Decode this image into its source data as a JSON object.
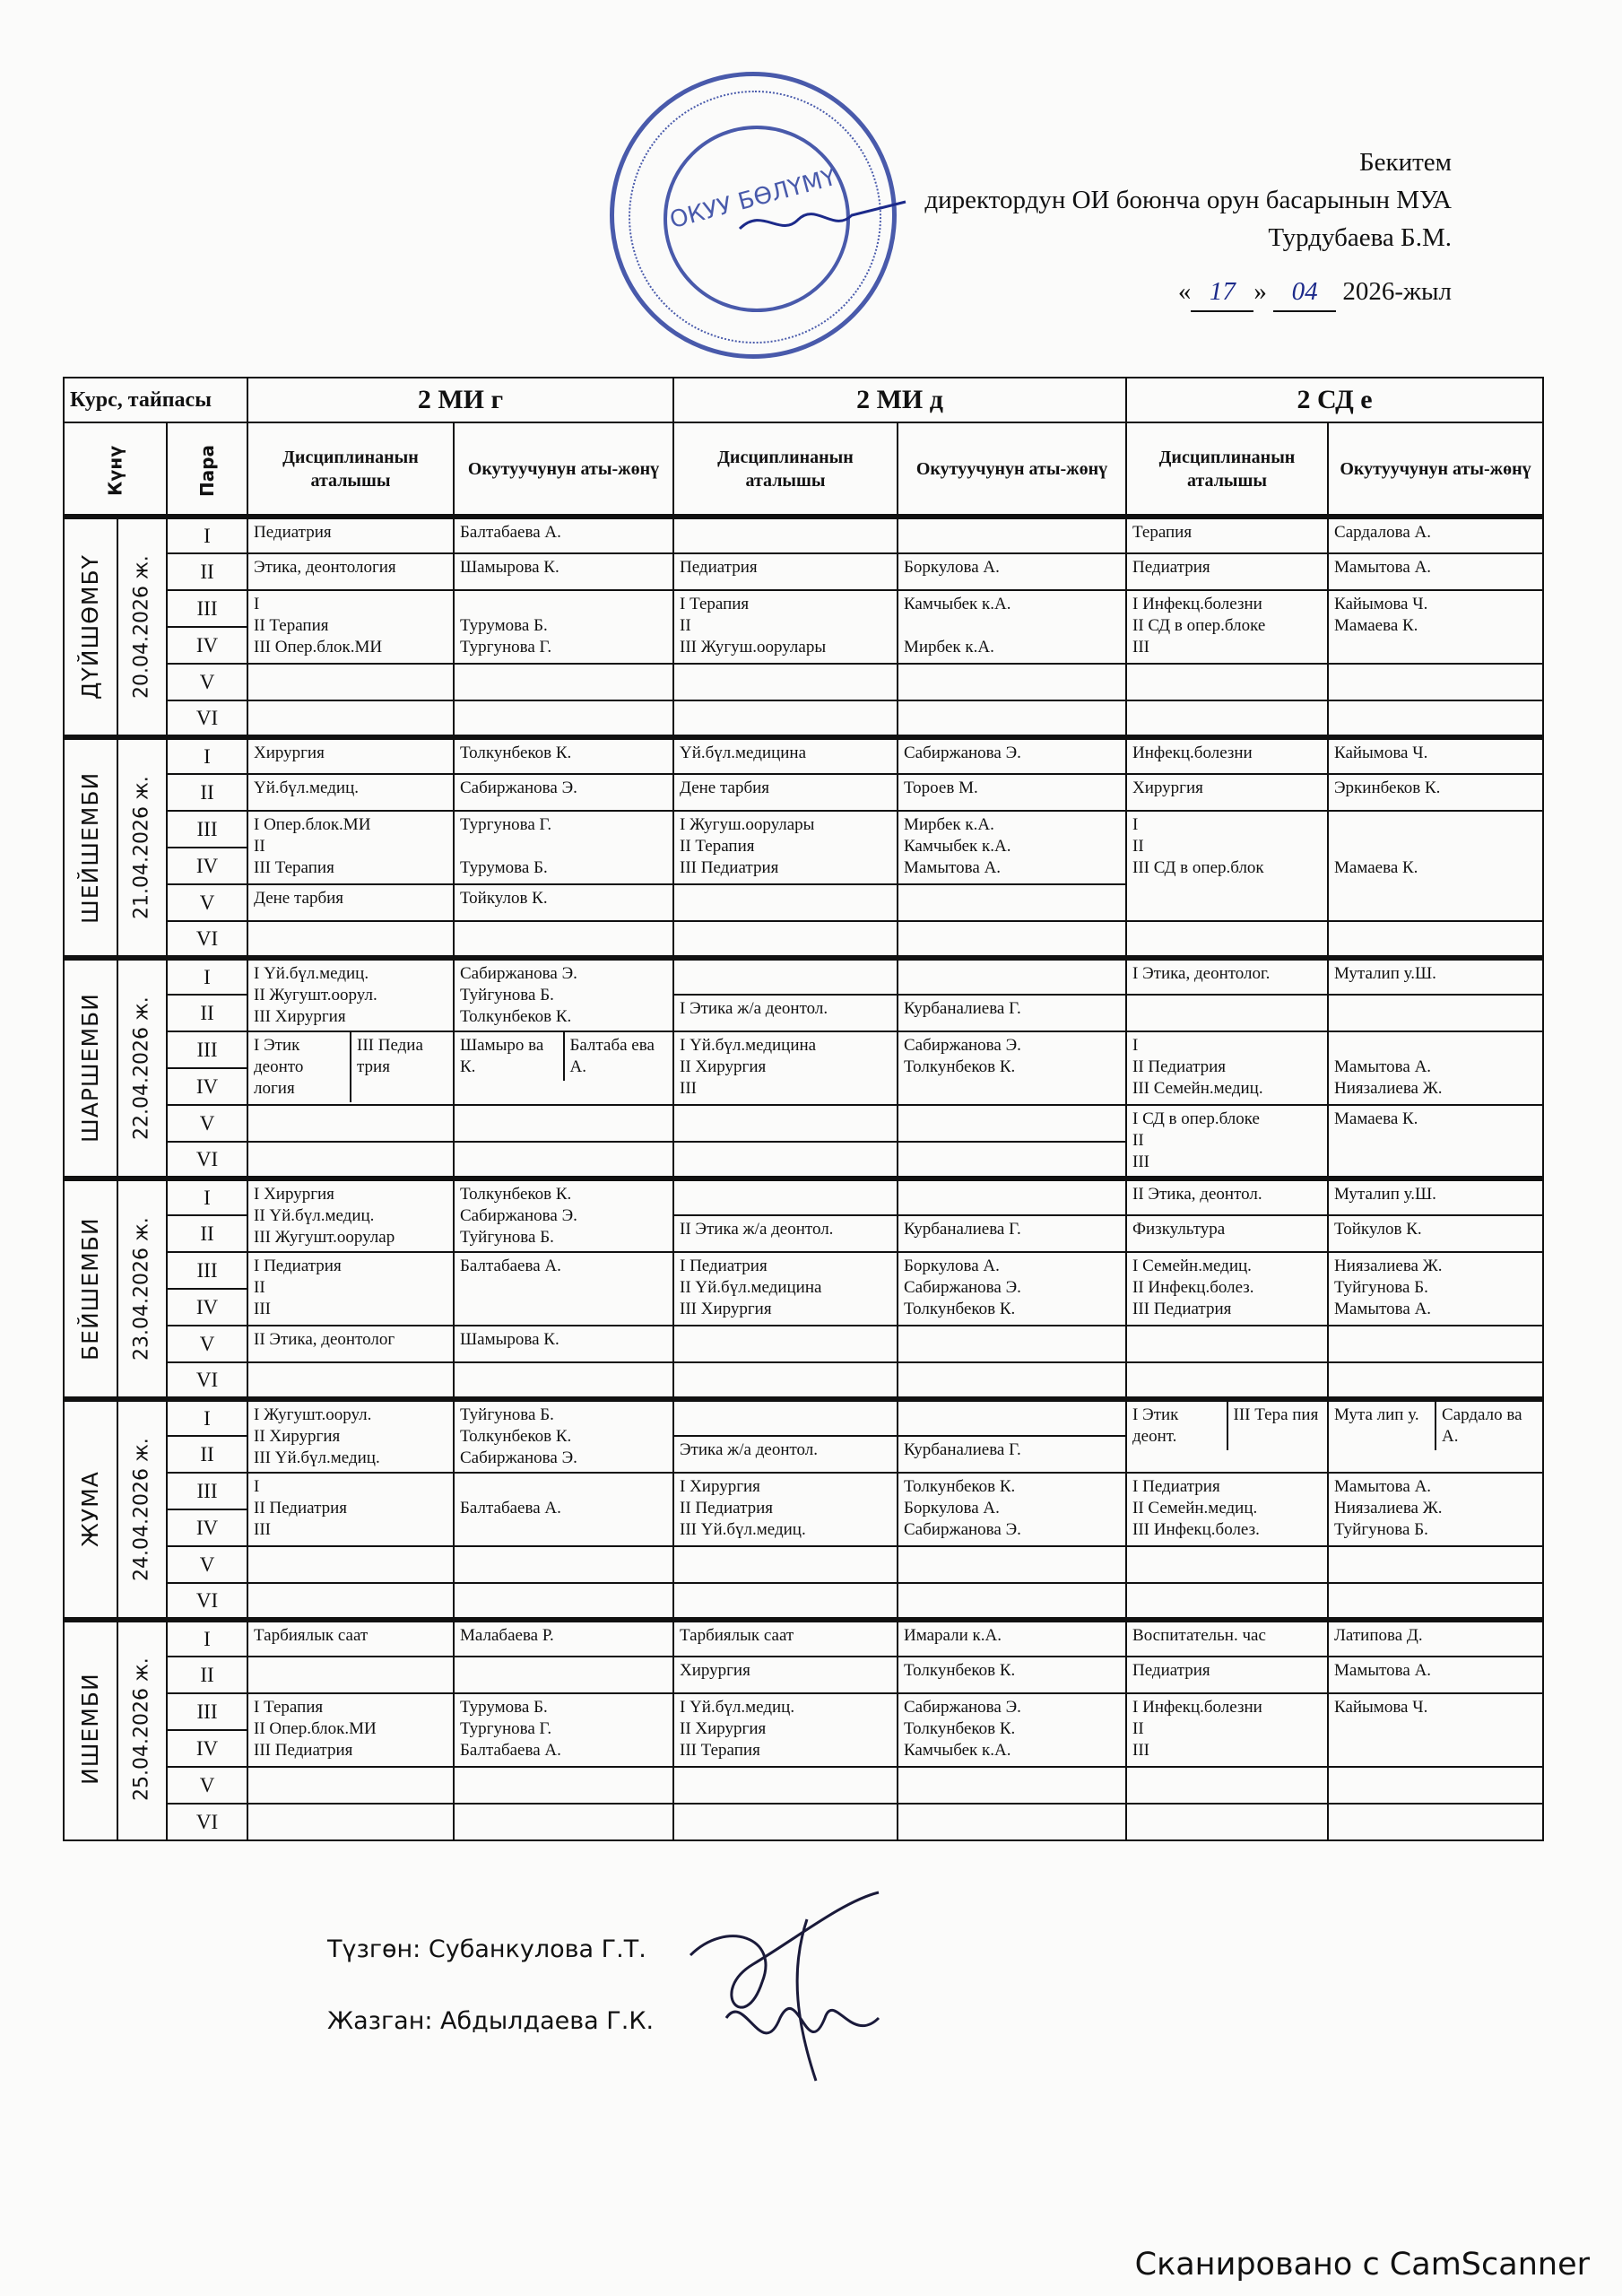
{
  "approval": {
    "title": "Бекитем",
    "position": "директордун ОИ боюнча орун басарынын МУА",
    "name": "Турдубаева Б.М.",
    "day": "17",
    "month": "04",
    "year": "2026-жыл",
    "stamp_text": "ОКУУ БӨЛҮМҮ"
  },
  "table": {
    "course_label": "Курс, тайпасы",
    "day_label": "Күнү",
    "para_label": "Пара",
    "discipline_label": "Дисциплинанын аталышы",
    "teacher_label": "Окутуучунун аты-жөнү",
    "teacher_label_3": "Окутуучунун аты-жөнү",
    "groups": [
      "2 МИ г",
      "2 МИ д",
      "2 СД е"
    ],
    "paras": [
      "I",
      "II",
      "III",
      "IV",
      "V",
      "VI"
    ],
    "days": [
      {
        "name": "ДҮЙШӨМБҮ",
        "date": "20.04.2026 ж.",
        "groups": [
          [
            {
              "span": 1,
              "d": "Педиатрия",
              "t": "Балтабаева А."
            },
            {
              "span": 1,
              "d": "Этика, деонтология",
              "t": "Шамырова К."
            },
            {
              "span": 2,
              "d": "I\nII Терапия\nIII Опер.блок.МИ",
              "t": "\nТурумова Б.\nТургунова Г."
            },
            {
              "span": 1,
              "d": "",
              "t": ""
            },
            {
              "span": 1,
              "d": "",
              "t": ""
            }
          ],
          [
            {
              "span": 1,
              "d": "",
              "t": ""
            },
            {
              "span": 1,
              "d": "Педиатрия",
              "t": "Боркулова А."
            },
            {
              "span": 2,
              "d": "I  Терапия\nII\nIII Жугуш.оорулары",
              "t": "Камчыбек к.А.\n\nМирбек к.А."
            },
            {
              "span": 1,
              "d": "",
              "t": ""
            },
            {
              "span": 1,
              "d": "",
              "t": ""
            }
          ],
          [
            {
              "span": 1,
              "d": "Терапия",
              "t": "Сардалова А."
            },
            {
              "span": 1,
              "d": "Педиатрия",
              "t": "Мамытова А."
            },
            {
              "span": 2,
              "d": "I Инфекц.болезни\nII СД в опер.блоке\nIII",
              "t": "Кайымова Ч.\nМамаева К."
            },
            {
              "span": 1,
              "d": "",
              "t": ""
            },
            {
              "span": 1,
              "d": "",
              "t": ""
            }
          ]
        ]
      },
      {
        "name": "ШЕЙШЕМБИ",
        "date": "21.04.2026 ж.",
        "groups": [
          [
            {
              "span": 1,
              "d": "Хирургия",
              "t": "Толкунбеков К."
            },
            {
              "span": 1,
              "d": "Үй.бүл.медиц.",
              "t": "Сабиржанова Э."
            },
            {
              "span": 2,
              "d": "I  Опер.блок.МИ\nII\nIII Терапия",
              "t": "Тургунова Г.\n\nТурумова Б."
            },
            {
              "span": 1,
              "d": "Дене тарбия",
              "t": "Тойкулов К."
            },
            {
              "span": 1,
              "d": "",
              "t": ""
            }
          ],
          [
            {
              "span": 1,
              "d": "Үй.бүл.медицина",
              "t": "Сабиржанова Э."
            },
            {
              "span": 1,
              "d": "Дене тарбия",
              "t": "Тороев М."
            },
            {
              "span": 2,
              "d": "I  Жугуш.оорулары\nII Терапия\nIII  Педиатрия",
              "t": "Мирбек к.А.\nКамчыбек к.А.\nМамытова А."
            },
            {
              "span": 1,
              "d": "",
              "t": ""
            },
            {
              "span": 1,
              "d": "",
              "t": ""
            }
          ],
          [
            {
              "span": 1,
              "d": "Инфекц.болезни",
              "t": "Кайымова Ч."
            },
            {
              "span": 1,
              "d": "Хирургия",
              "t": "Эркинбеков К."
            },
            {
              "span": 3,
              "d": "I\nII\nIII  СД в опер.блок",
              "t": "\n\nМамаева К."
            },
            {
              "span": 1,
              "d": "",
              "t": ""
            }
          ]
        ]
      },
      {
        "name": "ШАРШЕМБИ",
        "date": "22.04.2026 ж.",
        "groups": [
          [
            {
              "span": 2,
              "d": "I  Үй.бүл.медиц.\nII Жугушт.оорул.\nIII Хирургия",
              "t": "Сабиржанова Э.\nТуйгунова Б.\nТолкунбеков К."
            },
            {
              "span": 2,
              "split": [
                {
                  "d": "I Этик деонто логия",
                  "t": "Шамыро ва К."
                },
                {
                  "d": "III Педиа трия",
                  "t": "Балтаба ева А."
                }
              ]
            },
            {
              "span": 1,
              "d": "",
              "t": ""
            },
            {
              "span": 1,
              "d": "",
              "t": ""
            }
          ],
          [
            {
              "span": 1,
              "d": "",
              "t": ""
            },
            {
              "span": 1,
              "d": "I  Этика ж/а  деонтол.",
              "t": "Курбаналиева Г."
            },
            {
              "span": 2,
              "d": "I Үй.бүл.медицина\nII Хирургия\nIII",
              "t": "Сабиржанова Э.\nТолкунбеков К."
            },
            {
              "span": 1,
              "d": "",
              "t": ""
            },
            {
              "span": 1,
              "d": "",
              "t": ""
            }
          ],
          [
            {
              "span": 1,
              "d": "I Этика, деонтолог.",
              "t": "Муталип у.Ш."
            },
            {
              "span": 1,
              "d": "",
              "t": ""
            },
            {
              "span": 2,
              "d": "I\nII Педиатрия\nIII  Семейн.медиц.",
              "t": "\nМамытова А.\nНиязалиева Ж."
            },
            {
              "span": 2,
              "d": "I СД в опер.блоке\nII\nIII",
              "t": "Мамаева К."
            }
          ]
        ]
      },
      {
        "name": "БЕЙШЕМБИ",
        "date": "23.04.2026 ж.",
        "groups": [
          [
            {
              "span": 2,
              "d": "I  Хирургия\nII Үй.бүл.медиц.\nIII Жугушт.оорулар",
              "t": "Толкунбеков К.\nСабиржанова Э.\nТуйгунова Б."
            },
            {
              "span": 2,
              "d": "I  Педиатрия\nII\nIII",
              "t": "Балтабаева А."
            },
            {
              "span": 1,
              "d": "II Этика, деонтолог",
              "t": "Шамырова К."
            },
            {
              "span": 1,
              "d": "",
              "t": ""
            }
          ],
          [
            {
              "span": 1,
              "d": "",
              "t": ""
            },
            {
              "span": 1,
              "d": "II Этика ж/а  деонтол.",
              "t": "Курбаналиева Г."
            },
            {
              "span": 2,
              "d": "I  Педиатрия\nII Үй.бүл.медицина\nIII  Хирургия",
              "t": "Боркулова А.\nСабиржанова Э.\nТолкунбеков К."
            },
            {
              "span": 1,
              "d": "",
              "t": ""
            },
            {
              "span": 1,
              "d": "",
              "t": ""
            }
          ],
          [
            {
              "span": 1,
              "d": "II  Этика, деонтол.",
              "t": "Муталип у.Ш."
            },
            {
              "span": 1,
              "d": "Физкультура",
              "t": "Тойкулов К."
            },
            {
              "span": 2,
              "d": "I Семейн.медиц.\nII  Инфекц.болез.\nIII Педиатрия",
              "t": "Ниязалиева Ж.\nТуйгунова Б.\nМамытова А."
            },
            {
              "span": 1,
              "d": "",
              "t": ""
            },
            {
              "span": 1,
              "d": "",
              "t": ""
            }
          ]
        ]
      },
      {
        "name": "ЖУМА",
        "date": "24.04.2026 ж.",
        "groups": [
          [
            {
              "span": 2,
              "d": "I  Жугушт.оорул.\nII Хирургия\nIII Үй.бүл.медиц.",
              "t": "Туйгунова Б.\nТолкунбеков К.\nСабиржанова Э."
            },
            {
              "span": 2,
              "d": "I\nII  Педиатрия\nIII",
              "t": "\nБалтабаева А."
            },
            {
              "span": 1,
              "d": "",
              "t": ""
            },
            {
              "span": 1,
              "d": "",
              "t": ""
            }
          ],
          [
            {
              "span": 1,
              "d": "",
              "t": ""
            },
            {
              "span": 1,
              "d": "Этика ж/а  деонтол.",
              "t": "Курбаналиева Г."
            },
            {
              "span": 2,
              "d": "I  Хирургия\nII Педиатрия\nIII  Үй.бүл.медиц.",
              "t": "Толкунбеков К.\nБоркулова А.\nСабиржанова Э."
            },
            {
              "span": 1,
              "d": "",
              "t": ""
            },
            {
              "span": 1,
              "d": "",
              "t": ""
            }
          ],
          [
            {
              "span": 2,
              "split": [
                {
                  "d": "I  Этик деонт.",
                  "t": "Мута лип у."
                },
                {
                  "d": "III  Тера пия",
                  "t": "Сардало ва А."
                }
              ]
            },
            {
              "span": 2,
              "d": "I Педиатрия\nII Семейн.медиц.\nIII  Инфекц.болез.",
              "t": "Мамытова А.\nНиязалиева Ж.\nТуйгунова Б."
            },
            {
              "span": 1,
              "d": "",
              "t": ""
            },
            {
              "span": 1,
              "d": "",
              "t": ""
            }
          ]
        ]
      },
      {
        "name": "ИШЕМБИ",
        "date": "25.04.2026 ж.",
        "groups": [
          [
            {
              "span": 1,
              "d": "Тарбиялык саат",
              "t": "Малабаева Р."
            },
            {
              "span": 1,
              "d": "",
              "t": ""
            },
            {
              "span": 2,
              "d": "I  Терапия\nII  Опер.блок.МИ\nIII Педиатрия",
              "t": "Турумова Б.\nТургунова Г.\nБалтабаева А."
            },
            {
              "span": 1,
              "d": "",
              "t": ""
            },
            {
              "span": 1,
              "d": "",
              "t": ""
            }
          ],
          [
            {
              "span": 1,
              "d": "Тарбиялык саат",
              "t": "Имарали к.А."
            },
            {
              "span": 1,
              "d": "Хирургия",
              "t": "Толкунбеков К."
            },
            {
              "span": 2,
              "d": "I Үй.бүл.медиц.\nII  Хирургия\nIII Терапия",
              "t": "Сабиржанова Э.\nТолкунбеков К.\nКамчыбек к.А."
            },
            {
              "span": 1,
              "d": "",
              "t": ""
            },
            {
              "span": 1,
              "d": "",
              "t": ""
            }
          ],
          [
            {
              "span": 1,
              "d": "Воспитательн. час",
              "t": "Латипова Д."
            },
            {
              "span": 1,
              "d": "Педиатрия",
              "t": "Мамытова А."
            },
            {
              "span": 2,
              "d": "I Инфекц.болезни\nII\nIII",
              "t": "Кайымова Ч."
            },
            {
              "span": 1,
              "d": "",
              "t": ""
            },
            {
              "span": 1,
              "d": "",
              "t": ""
            }
          ]
        ]
      }
    ]
  },
  "footer": {
    "compiled": "Түзгөн: Субанкулова Г.Т.",
    "written": "Жазган: Абдылдаева Г.К."
  },
  "watermark": "Сканировано с CamScanner",
  "colors": {
    "stamp": "#2a3f9e",
    "ink": "#111111"
  }
}
